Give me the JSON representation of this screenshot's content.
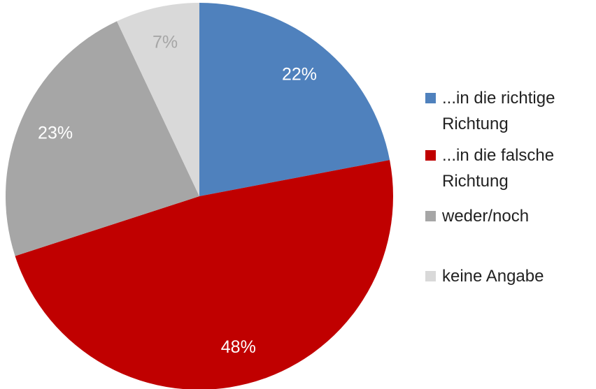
{
  "chart_data": {
    "type": "pie",
    "categories": [
      "...in die richtige Richtung",
      "...in die falsche Richtung",
      "weder/noch",
      "keine Angabe"
    ],
    "values": [
      22,
      48,
      23,
      7
    ],
    "value_labels": [
      "22%",
      "48%",
      "23%",
      "7%"
    ],
    "colors": [
      "#4f81bd",
      "#c00000",
      "#a6a6a6",
      "#d9d9d9"
    ],
    "legend": "right"
  }
}
